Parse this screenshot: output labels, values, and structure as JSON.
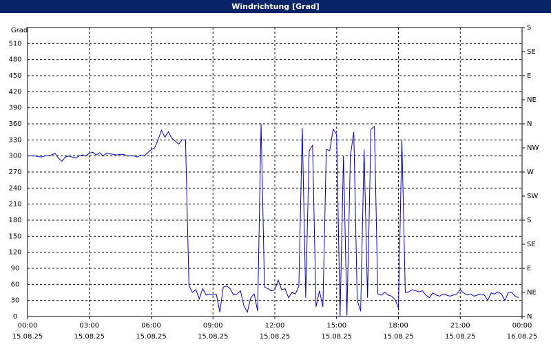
{
  "chart_data": {
    "type": "line",
    "title": "Windrichtung [Grad]",
    "y_label": "Grad",
    "color": "#0000c0",
    "grid": true,
    "xlim": [
      0,
      1440
    ],
    "xticks": [
      {
        "value": 0,
        "label": "00:00"
      },
      {
        "value": 180,
        "label": "03:00"
      },
      {
        "value": 360,
        "label": "06:00"
      },
      {
        "value": 540,
        "label": "09:00"
      },
      {
        "value": 720,
        "label": "12:00"
      },
      {
        "value": 900,
        "label": "15:00"
      },
      {
        "value": 1080,
        "label": "18:00"
      },
      {
        "value": 1260,
        "label": "21:00"
      },
      {
        "value": 1440,
        "label": "00:00"
      }
    ],
    "xtick_dates": [
      "15.08.25",
      "15.08.25",
      "15.08.25",
      "15.08.25",
      "15.08.25",
      "15.08.25",
      "15.08.25",
      "15.08.25",
      "16.08.25"
    ],
    "ylim": [
      0,
      540
    ],
    "yticks": [
      0,
      30,
      60,
      90,
      120,
      150,
      180,
      210,
      240,
      270,
      300,
      330,
      360,
      390,
      420,
      450,
      480,
      510
    ],
    "y2lim": [
      0,
      540
    ],
    "y2ticks": [
      {
        "value": 0,
        "label": "N"
      },
      {
        "value": 45,
        "label": "NE"
      },
      {
        "value": 90,
        "label": "E"
      },
      {
        "value": 135,
        "label": "SE"
      },
      {
        "value": 180,
        "label": "S"
      },
      {
        "value": 225,
        "label": "SW"
      },
      {
        "value": 270,
        "label": "W"
      },
      {
        "value": 315,
        "label": "NW"
      },
      {
        "value": 360,
        "label": "N"
      },
      {
        "value": 405,
        "label": "NE"
      },
      {
        "value": 450,
        "label": "E"
      },
      {
        "value": 495,
        "label": "SE"
      },
      {
        "value": 540,
        "label": "S"
      }
    ],
    "x": [
      0,
      10,
      20,
      30,
      40,
      50,
      60,
      70,
      80,
      90,
      100,
      110,
      120,
      130,
      140,
      150,
      160,
      170,
      180,
      190,
      200,
      210,
      220,
      230,
      240,
      250,
      260,
      270,
      280,
      290,
      300,
      310,
      320,
      330,
      340,
      350,
      360,
      370,
      380,
      390,
      400,
      410,
      420,
      430,
      440,
      450,
      460,
      470,
      480,
      490,
      500,
      510,
      520,
      530,
      540,
      550,
      560,
      570,
      580,
      590,
      600,
      610,
      620,
      630,
      640,
      650,
      660,
      670,
      680,
      690,
      700,
      710,
      720,
      730,
      740,
      750,
      760,
      770,
      780,
      790,
      800,
      810,
      820,
      830,
      840,
      850,
      860,
      870,
      880,
      890,
      900,
      910,
      920,
      930,
      940,
      950,
      960,
      970,
      980,
      990,
      1000,
      1010,
      1020,
      1030,
      1040,
      1050,
      1060,
      1070,
      1080,
      1090,
      1100,
      1110,
      1120,
      1130,
      1140,
      1150,
      1160,
      1170,
      1180,
      1190,
      1200,
      1210,
      1220,
      1230,
      1240,
      1250,
      1260,
      1270,
      1280,
      1290,
      1300,
      1310,
      1320,
      1330,
      1340,
      1350,
      1360,
      1370,
      1380,
      1390,
      1400,
      1410,
      1420,
      1430
    ],
    "values": [
      300,
      300,
      300,
      299,
      298,
      300,
      300,
      302,
      305,
      296,
      290,
      298,
      300,
      298,
      296,
      300,
      302,
      300,
      305,
      307,
      302,
      306,
      300,
      305,
      304,
      303,
      302,
      303,
      303,
      300,
      300,
      300,
      298,
      302,
      300,
      306,
      312,
      315,
      330,
      348,
      335,
      345,
      333,
      328,
      322,
      330,
      330,
      58,
      45,
      50,
      33,
      52,
      40,
      42,
      40,
      41,
      8,
      55,
      57,
      52,
      40,
      42,
      48,
      20,
      8,
      35,
      42,
      10,
      360,
      55,
      52,
      48,
      50,
      68,
      50,
      52,
      35,
      45,
      42,
      57,
      352,
      35,
      310,
      320,
      18,
      48,
      18,
      312,
      310,
      350,
      340,
      0,
      300,
      2,
      300,
      345,
      30,
      10,
      312,
      35,
      350,
      355,
      42,
      40,
      45,
      40,
      38,
      32,
      16,
      330,
      45,
      46,
      50,
      48,
      46,
      48,
      40,
      35,
      44,
      40,
      38,
      42,
      40,
      38,
      40,
      42,
      50,
      44,
      40,
      42,
      38,
      40,
      42,
      40,
      30,
      44,
      42,
      46,
      42,
      30,
      45,
      45,
      38,
      35
    ]
  }
}
